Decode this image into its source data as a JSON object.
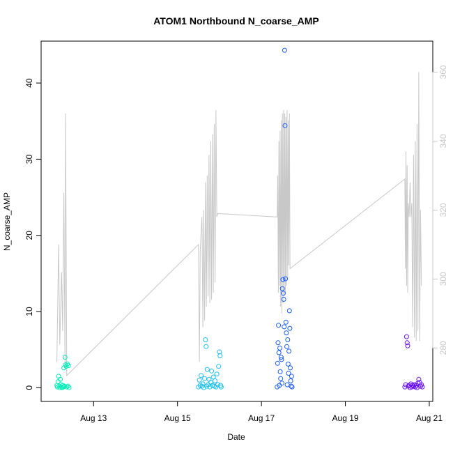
{
  "chart_data": {
    "type": "scatter",
    "title": "ATOM1 Northbound N_coarse_AMP",
    "xlabel": "Date",
    "ylabel": "N_coarse_AMP",
    "xlim": [
      "2012-08-11T18:00",
      "2012-08-21T02:00"
    ],
    "ylim": [
      -1.8,
      45.5
    ],
    "y2lim": [
      264.5,
      369
    ],
    "x_ticks": [
      {
        "label": "Aug 13",
        "x": "2012-08-13T00:00"
      },
      {
        "label": "Aug 15",
        "x": "2012-08-15T00:00"
      },
      {
        "label": "Aug 17",
        "x": "2012-08-17T00:00"
      },
      {
        "label": "Aug 19",
        "x": "2012-08-19T00:00"
      },
      {
        "label": "Aug 21",
        "x": "2012-08-21T00:00"
      }
    ],
    "y_ticks": [
      0,
      10,
      20,
      30,
      40
    ],
    "y2_ticks": [
      280,
      300,
      320,
      340,
      360
    ],
    "grid": false,
    "legend": "none",
    "colors": {
      "axis": "#000000",
      "right_axis": "#c8c8c8",
      "line": "#c8c8c8"
    },
    "series": [
      {
        "color": "#00f0b8",
        "points": [
          [
            "2012-08-12T03:00",
            0.3
          ],
          [
            "2012-08-12T03:20",
            0.1
          ],
          [
            "2012-08-12T03:40",
            0.8
          ],
          [
            "2012-08-12T04:00",
            1.5
          ],
          [
            "2012-08-12T04:20",
            0.2
          ],
          [
            "2012-08-12T04:40",
            0.0
          ],
          [
            "2012-08-12T05:00",
            1.1
          ],
          [
            "2012-08-12T05:20",
            0.4
          ],
          [
            "2012-08-12T05:40",
            0.1
          ],
          [
            "2012-08-12T06:00",
            0.0
          ],
          [
            "2012-08-12T06:20",
            0.3
          ],
          [
            "2012-08-12T06:40",
            0.1
          ],
          [
            "2012-08-12T07:00",
            2.6
          ],
          [
            "2012-08-12T07:20",
            0.2
          ],
          [
            "2012-08-12T07:40",
            4.0
          ],
          [
            "2012-08-12T08:00",
            3.0
          ],
          [
            "2012-08-12T08:20",
            2.8
          ],
          [
            "2012-08-12T08:40",
            0.1
          ],
          [
            "2012-08-12T09:00",
            3.1
          ],
          [
            "2012-08-12T09:20",
            0.2
          ],
          [
            "2012-08-12T09:40",
            2.9
          ],
          [
            "2012-08-12T10:00",
            0.0
          ]
        ]
      },
      {
        "color": "#19c0f0",
        "points": [
          [
            "2012-08-15T12:00",
            0.1
          ],
          [
            "2012-08-15T12:30",
            1.0
          ],
          [
            "2012-08-15T13:00",
            0.3
          ],
          [
            "2012-08-15T13:30",
            1.6
          ],
          [
            "2012-08-15T14:00",
            0.2
          ],
          [
            "2012-08-15T14:30",
            0.5
          ],
          [
            "2012-08-15T15:00",
            0.0
          ],
          [
            "2012-08-15T15:30",
            1.2
          ],
          [
            "2012-08-15T16:00",
            6.3
          ],
          [
            "2012-08-15T16:20",
            5.4
          ],
          [
            "2012-08-15T16:40",
            0.2
          ],
          [
            "2012-08-15T17:00",
            2.4
          ],
          [
            "2012-08-15T17:30",
            0.4
          ],
          [
            "2012-08-15T18:00",
            1.1
          ],
          [
            "2012-08-15T18:30",
            0.1
          ],
          [
            "2012-08-15T19:00",
            0.7
          ],
          [
            "2012-08-15T19:30",
            2.2
          ],
          [
            "2012-08-15T20:00",
            0.3
          ],
          [
            "2012-08-15T20:30",
            1.4
          ],
          [
            "2012-08-15T21:00",
            0.2
          ],
          [
            "2012-08-15T21:30",
            0.9
          ],
          [
            "2012-08-15T22:00",
            0.1
          ],
          [
            "2012-08-15T22:30",
            1.8
          ],
          [
            "2012-08-15T23:00",
            0.4
          ],
          [
            "2012-08-15T23:30",
            2.8
          ],
          [
            "2012-08-16T00:00",
            4.7
          ],
          [
            "2012-08-16T00:20",
            4.2
          ],
          [
            "2012-08-16T00:40",
            0.3
          ],
          [
            "2012-08-16T01:00",
            0.1
          ]
        ]
      },
      {
        "color": "#1a5cf0",
        "points": [
          [
            "2012-08-17T09:00",
            0.1
          ],
          [
            "2012-08-17T09:15",
            3.2
          ],
          [
            "2012-08-17T09:30",
            5.9
          ],
          [
            "2012-08-17T09:45",
            8.2
          ],
          [
            "2012-08-17T10:00",
            4.6
          ],
          [
            "2012-08-17T10:15",
            0.3
          ],
          [
            "2012-08-17T10:30",
            5.2
          ],
          [
            "2012-08-17T10:45",
            2.1
          ],
          [
            "2012-08-17T11:00",
            1.2
          ],
          [
            "2012-08-17T11:15",
            4.0
          ],
          [
            "2012-08-17T11:30",
            3.7
          ],
          [
            "2012-08-17T11:45",
            0.6
          ],
          [
            "2012-08-17T12:00",
            13.0
          ],
          [
            "2012-08-17T12:15",
            14.2
          ],
          [
            "2012-08-17T12:30",
            12.4
          ],
          [
            "2012-08-17T12:45",
            11.6
          ],
          [
            "2012-08-17T13:00",
            8.0
          ],
          [
            "2012-08-17T13:15",
            44.3
          ],
          [
            "2012-08-17T13:30",
            34.4
          ],
          [
            "2012-08-17T13:45",
            14.3
          ],
          [
            "2012-08-17T14:00",
            8.6
          ],
          [
            "2012-08-17T14:15",
            7.2
          ],
          [
            "2012-08-17T14:30",
            5.4
          ],
          [
            "2012-08-17T14:45",
            0.4
          ],
          [
            "2012-08-17T15:00",
            6.3
          ],
          [
            "2012-08-17T15:15",
            3.1
          ],
          [
            "2012-08-17T15:30",
            1.9
          ],
          [
            "2012-08-17T15:45",
            4.8
          ],
          [
            "2012-08-17T16:00",
            10.1
          ],
          [
            "2012-08-17T16:15",
            7.8
          ],
          [
            "2012-08-17T16:30",
            2.6
          ],
          [
            "2012-08-17T16:45",
            0.9
          ],
          [
            "2012-08-17T17:00",
            0.2
          ],
          [
            "2012-08-17T17:15",
            1.5
          ],
          [
            "2012-08-17T17:30",
            0.1
          ]
        ]
      },
      {
        "color": "#6a10f0",
        "points": [
          [
            "2012-08-20T10:00",
            0.1
          ],
          [
            "2012-08-20T10:30",
            0.4
          ],
          [
            "2012-08-20T11:00",
            6.7
          ],
          [
            "2012-08-20T11:20",
            5.9
          ],
          [
            "2012-08-20T11:40",
            5.5
          ],
          [
            "2012-08-20T12:00",
            0.2
          ],
          [
            "2012-08-20T12:30",
            0.3
          ],
          [
            "2012-08-20T13:00",
            0.0
          ],
          [
            "2012-08-20T13:30",
            0.5
          ],
          [
            "2012-08-20T14:00",
            0.1
          ],
          [
            "2012-08-20T14:30",
            0.3
          ],
          [
            "2012-08-20T15:00",
            0.2
          ],
          [
            "2012-08-20T15:30",
            0.4
          ],
          [
            "2012-08-20T16:00",
            0.1
          ],
          [
            "2012-08-20T16:30",
            0.3
          ],
          [
            "2012-08-20T17:00",
            0.0
          ],
          [
            "2012-08-20T17:30",
            0.6
          ],
          [
            "2012-08-20T18:00",
            1.1
          ],
          [
            "2012-08-20T18:30",
            0.7
          ],
          [
            "2012-08-20T19:00",
            0.2
          ],
          [
            "2012-08-20T19:30",
            0.4
          ],
          [
            "2012-08-20T20:00",
            0.1
          ]
        ]
      }
    ],
    "secondary_line": {
      "axis": "right",
      "points": [
        [
          "2012-08-12T03:00",
          276
        ],
        [
          "2012-08-12T04:00",
          310
        ],
        [
          "2012-08-12T04:40",
          281
        ],
        [
          "2012-08-12T05:40",
          302
        ],
        [
          "2012-08-12T06:20",
          285
        ],
        [
          "2012-08-12T07:00",
          325
        ],
        [
          "2012-08-12T07:40",
          274
        ],
        [
          "2012-08-12T08:00",
          348
        ],
        [
          "2012-08-12T08:40",
          272
        ],
        [
          "2012-08-15T12:00",
          310
        ],
        [
          "2012-08-15T12:30",
          276
        ],
        [
          "2012-08-15T13:00",
          308
        ],
        [
          "2012-08-15T13:30",
          314
        ],
        [
          "2012-08-15T14:00",
          318
        ],
        [
          "2012-08-15T14:30",
          286
        ],
        [
          "2012-08-15T15:00",
          320
        ],
        [
          "2012-08-15T15:30",
          288
        ],
        [
          "2012-08-15T16:00",
          328
        ],
        [
          "2012-08-15T16:30",
          292
        ],
        [
          "2012-08-15T17:00",
          330
        ],
        [
          "2012-08-15T17:30",
          295
        ],
        [
          "2012-08-15T18:00",
          336
        ],
        [
          "2012-08-15T18:30",
          293
        ],
        [
          "2012-08-15T19:00",
          340
        ],
        [
          "2012-08-15T19:30",
          294
        ],
        [
          "2012-08-15T20:00",
          342
        ],
        [
          "2012-08-15T20:30",
          296
        ],
        [
          "2012-08-15T21:00",
          345
        ],
        [
          "2012-08-15T21:30",
          299
        ],
        [
          "2012-08-15T22:00",
          349
        ],
        [
          "2012-08-15T22:30",
          318
        ],
        [
          "2012-08-15T23:00",
          319
        ],
        [
          "2012-08-17T09:00",
          318
        ],
        [
          "2012-08-17T09:20",
          330
        ],
        [
          "2012-08-17T09:40",
          296
        ],
        [
          "2012-08-17T10:00",
          340
        ],
        [
          "2012-08-17T10:20",
          298
        ],
        [
          "2012-08-17T10:40",
          343
        ],
        [
          "2012-08-17T11:00",
          292
        ],
        [
          "2012-08-17T11:20",
          346
        ],
        [
          "2012-08-17T11:40",
          290
        ],
        [
          "2012-08-17T12:00",
          348
        ],
        [
          "2012-08-17T12:20",
          293
        ],
        [
          "2012-08-17T12:40",
          349
        ],
        [
          "2012-08-17T13:00",
          295
        ],
        [
          "2012-08-17T13:20",
          348
        ],
        [
          "2012-08-17T13:40",
          296
        ],
        [
          "2012-08-17T14:00",
          347
        ],
        [
          "2012-08-17T14:20",
          298
        ],
        [
          "2012-08-17T14:40",
          349
        ],
        [
          "2012-08-17T15:00",
          300
        ],
        [
          "2012-08-17T15:20",
          346
        ],
        [
          "2012-08-17T15:40",
          304
        ],
        [
          "2012-08-17T16:00",
          348
        ],
        [
          "2012-08-17T16:20",
          303
        ],
        [
          "2012-08-20T10:00",
          329
        ],
        [
          "2012-08-20T10:20",
          303
        ],
        [
          "2012-08-20T10:40",
          337
        ],
        [
          "2012-08-20T11:00",
          298
        ],
        [
          "2012-08-20T11:20",
          333
        ],
        [
          "2012-08-20T11:40",
          296
        ],
        [
          "2012-08-20T12:00",
          322
        ],
        [
          "2012-08-20T12:30",
          318
        ],
        [
          "2012-08-20T13:00",
          328
        ],
        [
          "2012-08-20T13:30",
          318
        ],
        [
          "2012-08-20T14:00",
          322
        ],
        [
          "2012-08-20T14:30",
          286
        ],
        [
          "2012-08-20T15:00",
          336
        ],
        [
          "2012-08-20T15:30",
          283
        ],
        [
          "2012-08-20T16:00",
          340
        ],
        [
          "2012-08-20T16:30",
          282
        ],
        [
          "2012-08-20T17:00",
          345
        ],
        [
          "2012-08-20T17:30",
          285
        ],
        [
          "2012-08-20T18:00",
          360
        ],
        [
          "2012-08-20T18:30",
          282
        ],
        [
          "2012-08-20T19:00",
          320
        ],
        [
          "2012-08-20T19:30",
          298
        ]
      ]
    }
  }
}
